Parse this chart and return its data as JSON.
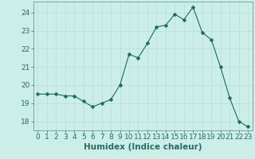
{
  "x": [
    0,
    1,
    2,
    3,
    4,
    5,
    6,
    7,
    8,
    9,
    10,
    11,
    12,
    13,
    14,
    15,
    16,
    17,
    18,
    19,
    20,
    21,
    22,
    23
  ],
  "y": [
    19.5,
    19.5,
    19.5,
    19.4,
    19.4,
    19.1,
    18.8,
    19.0,
    19.2,
    20.0,
    21.7,
    21.5,
    22.3,
    23.2,
    23.3,
    23.9,
    23.6,
    24.3,
    22.9,
    22.5,
    21.0,
    19.3,
    18.0,
    17.7
  ],
  "line_color": "#1a6b5a",
  "marker": "D",
  "marker_size": 2.5,
  "bg_color": "#cceee8",
  "grid_color": "#b8ddd8",
  "xlabel": "Humidex (Indice chaleur)",
  "xlabel_style": "bold",
  "ylim": [
    17.5,
    24.6
  ],
  "yticks": [
    18,
    19,
    20,
    21,
    22,
    23,
    24
  ],
  "xticks": [
    0,
    1,
    2,
    3,
    4,
    5,
    6,
    7,
    8,
    9,
    10,
    11,
    12,
    13,
    14,
    15,
    16,
    17,
    18,
    19,
    20,
    21,
    22,
    23
  ],
  "font_size": 6.5,
  "xlabel_size": 7.5,
  "tick_color": "#2a6b60"
}
